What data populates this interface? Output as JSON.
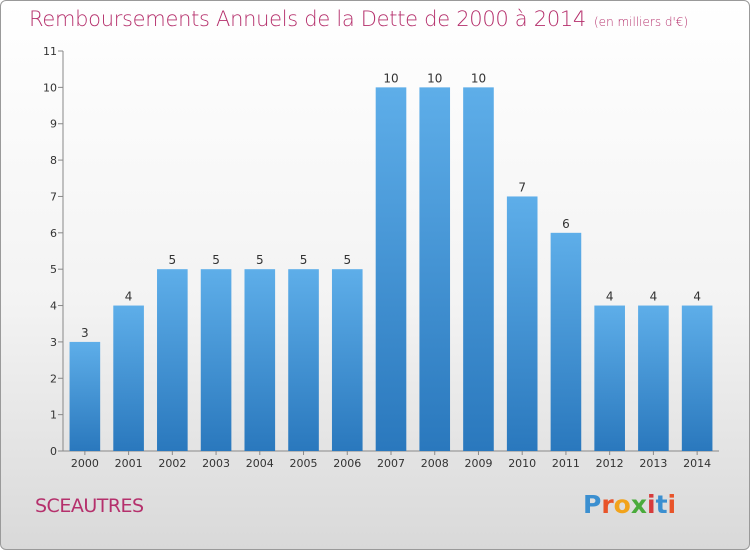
{
  "header": {
    "title": "Remboursements Annuels de la Dette de 2000 à 2014",
    "subtitle": "(en milliers d'€)"
  },
  "footer": {
    "town": "SCEAUTRES",
    "logo_letters": [
      "P",
      "r",
      "o",
      "x",
      "i",
      "t",
      "i"
    ],
    "logo_colors": [
      "#3b8fd0",
      "#e8542a",
      "#f2a31b",
      "#4aab3c",
      "#d63b3b",
      "#3b8fd0",
      "#e8542a"
    ]
  },
  "colors": {
    "title": "#b5306c",
    "bar_top": "#5eaee9",
    "bar_bottom": "#2a78bd",
    "axis": "#888888",
    "tick_text": "#333333"
  },
  "chart_data": {
    "type": "bar",
    "categories": [
      "2000",
      "2001",
      "2002",
      "2003",
      "2004",
      "2005",
      "2006",
      "2007",
      "2008",
      "2009",
      "2010",
      "2011",
      "2012",
      "2013",
      "2014"
    ],
    "values": [
      3,
      4,
      5,
      5,
      5,
      5,
      5,
      10,
      10,
      10,
      7,
      6,
      4,
      4,
      4
    ],
    "yticks": [
      0,
      1,
      2,
      3,
      4,
      5,
      6,
      7,
      8,
      9,
      10,
      11
    ],
    "ylim": [
      0,
      11
    ],
    "title": "Remboursements Annuels de la Dette de 2000 à 2014",
    "xlabel": "",
    "ylabel": "",
    "data_labels": true,
    "grid": false
  }
}
